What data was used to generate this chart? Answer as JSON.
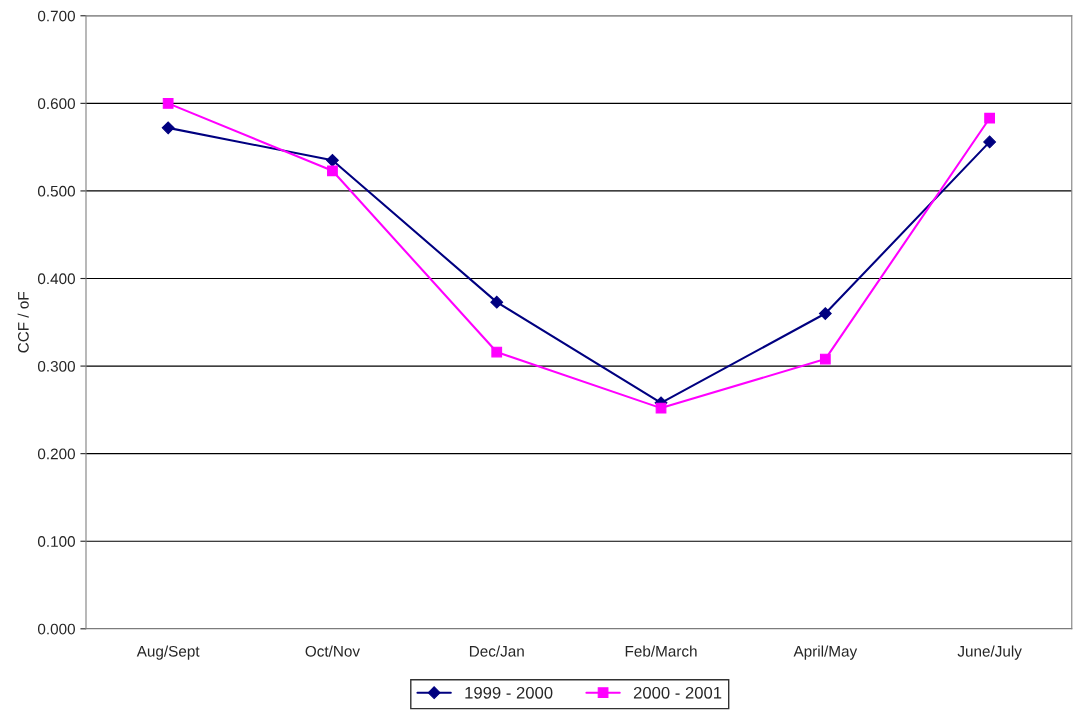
{
  "chart_data": {
    "type": "line",
    "ylabel": "CCF / oF",
    "categories": [
      "Aug/Sept",
      "Oct/Nov",
      "Dec/Jan",
      "Feb/March",
      "April/May",
      "June/July"
    ],
    "series": [
      {
        "name": "1999 - 2000",
        "color": "#000080",
        "marker": "diamond",
        "values": [
          0.572,
          0.535,
          0.373,
          0.258,
          0.36,
          0.556
        ]
      },
      {
        "name": "2000 - 2001",
        "color": "#ff00ff",
        "marker": "square",
        "values": [
          0.6,
          0.523,
          0.316,
          0.252,
          0.308,
          0.583
        ]
      }
    ],
    "ylim": [
      0,
      0.7
    ],
    "yticks": [
      {
        "value": 0,
        "label": "0.000"
      },
      {
        "value": 0.1,
        "label": "0.100"
      },
      {
        "value": 0.2,
        "label": "0.200"
      },
      {
        "value": 0.3,
        "label": "0.300"
      },
      {
        "value": 0.4,
        "label": "0.400"
      },
      {
        "value": 0.5,
        "label": "0.500"
      },
      {
        "value": 0.6,
        "label": "0.600"
      },
      {
        "value": 0.7,
        "label": "0.700"
      }
    ],
    "grid": "y",
    "legend": "bottom",
    "line_style": "solid"
  }
}
